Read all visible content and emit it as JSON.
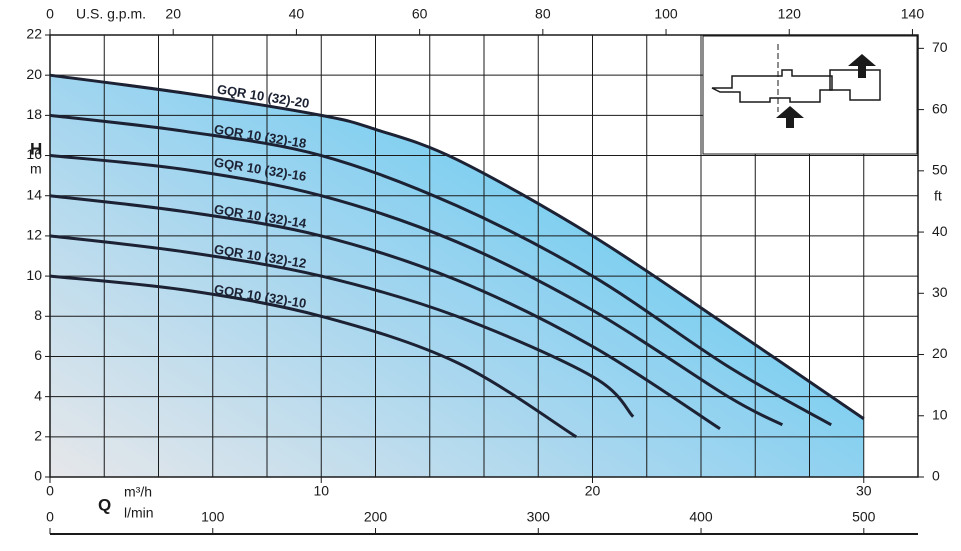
{
  "chart_data": {
    "type": "line",
    "y_label": "H",
    "y_unit": "m",
    "y2_unit": "ft",
    "x_label": "Q",
    "x_unit": "m³/h",
    "x2_unit": "U.S. g.p.m.",
    "x3_unit": "l/min",
    "xlim": [
      0,
      32
    ],
    "xticks": [
      0,
      10,
      20,
      30
    ],
    "xgrid": [
      2,
      4,
      6,
      8,
      10,
      12,
      14,
      16,
      18,
      20,
      22,
      24,
      26,
      28,
      30
    ],
    "x2lim": [
      0,
      140.9
    ],
    "x2ticks": [
      0,
      20,
      40,
      60,
      80,
      100,
      120,
      140
    ],
    "x3lim": [
      0,
      533.3
    ],
    "x3ticks": [
      0,
      100,
      200,
      300,
      400,
      500
    ],
    "ylim": [
      0,
      22
    ],
    "yticks": [
      0,
      2,
      4,
      6,
      8,
      10,
      12,
      14,
      16,
      18,
      20,
      22
    ],
    "y2lim": [
      0,
      72.18
    ],
    "y2ticks": [
      0,
      10,
      20,
      30,
      40,
      50,
      60,
      70
    ],
    "grid": true,
    "color": "#1c2233",
    "series": [
      {
        "name": "GQR 10 (32)-20",
        "x": [
          0,
          5,
          10,
          12,
          15,
          20,
          25,
          30
        ],
        "values": [
          20,
          19.1,
          18,
          17.3,
          15.8,
          12,
          7.5,
          2.9
        ]
      },
      {
        "name": "GQR 10 (32)-18",
        "x": [
          0,
          5,
          10,
          15,
          20,
          25,
          28.8
        ],
        "values": [
          18,
          17.2,
          16,
          13.5,
          10,
          5.5,
          2.6
        ]
      },
      {
        "name": "GQR 10 (32)-16",
        "x": [
          0,
          5,
          10,
          15,
          20,
          25,
          27
        ],
        "values": [
          16,
          15.3,
          14,
          11.7,
          8.3,
          4,
          2.6
        ]
      },
      {
        "name": "GQR 10 (32)-14",
        "x": [
          0,
          5,
          10,
          15,
          20,
          24.7
        ],
        "values": [
          14,
          13.2,
          12,
          9.8,
          6.5,
          2.4
        ]
      },
      {
        "name": "GQR 10 (32)-12",
        "x": [
          0,
          5,
          10,
          15,
          20,
          21.5
        ],
        "values": [
          12,
          11.2,
          10,
          8,
          5,
          3
        ]
      },
      {
        "name": "GQR 10 (32)-10",
        "x": [
          0,
          5,
          10,
          15,
          19.4
        ],
        "values": [
          10,
          9.3,
          8,
          5.7,
          2
        ]
      }
    ]
  }
}
